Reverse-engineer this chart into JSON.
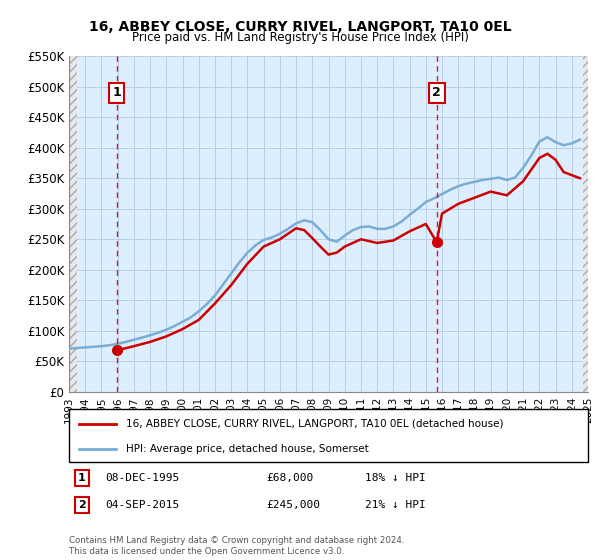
{
  "title": "16, ABBEY CLOSE, CURRY RIVEL, LANGPORT, TA10 0EL",
  "subtitle": "Price paid vs. HM Land Registry's House Price Index (HPI)",
  "ylim": [
    0,
    550000
  ],
  "xlim_start": 1993,
  "xlim_end": 2025,
  "yticks": [
    0,
    50000,
    100000,
    150000,
    200000,
    250000,
    300000,
    350000,
    400000,
    450000,
    500000,
    550000
  ],
  "ytick_labels": [
    "£0",
    "£50K",
    "£100K",
    "£150K",
    "£200K",
    "£250K",
    "£300K",
    "£350K",
    "£400K",
    "£450K",
    "£500K",
    "£550K"
  ],
  "xticks": [
    1993,
    1994,
    1995,
    1996,
    1997,
    1998,
    1999,
    2000,
    2001,
    2002,
    2003,
    2004,
    2005,
    2006,
    2007,
    2008,
    2009,
    2010,
    2011,
    2012,
    2013,
    2014,
    2015,
    2016,
    2017,
    2018,
    2019,
    2020,
    2021,
    2022,
    2023,
    2024,
    2025
  ],
  "hpi_color": "#7aadd4",
  "price_color": "#cc0000",
  "background_color": "#ddeeff",
  "grid_color": "#b8cfe8",
  "hatch_left_end": 1993.5,
  "hatch_right_start": 2024.67,
  "marker1_date": 1995.93,
  "marker1_price": 68000,
  "marker2_date": 2015.67,
  "marker2_price": 245000,
  "sale1_label": "1",
  "sale2_label": "2",
  "legend_label_price": "16, ABBEY CLOSE, CURRY RIVEL, LANGPORT, TA10 0EL (detached house)",
  "legend_label_hpi": "HPI: Average price, detached house, Somerset",
  "footnote": "Contains HM Land Registry data © Crown copyright and database right 2024.\nThis data is licensed under the Open Government Licence v3.0.",
  "hpi_data": {
    "years": [
      1993.0,
      1993.5,
      1994.0,
      1994.5,
      1995.0,
      1995.5,
      1996.0,
      1996.5,
      1997.0,
      1997.5,
      1998.0,
      1998.5,
      1999.0,
      1999.5,
      2000.0,
      2000.5,
      2001.0,
      2001.5,
      2002.0,
      2002.5,
      2003.0,
      2003.5,
      2004.0,
      2004.5,
      2005.0,
      2005.5,
      2006.0,
      2006.5,
      2007.0,
      2007.5,
      2008.0,
      2008.5,
      2009.0,
      2009.5,
      2010.0,
      2010.5,
      2011.0,
      2011.5,
      2012.0,
      2012.5,
      2013.0,
      2013.5,
      2014.0,
      2014.5,
      2015.0,
      2015.5,
      2016.0,
      2016.5,
      2017.0,
      2017.5,
      2018.0,
      2018.5,
      2019.0,
      2019.5,
      2020.0,
      2020.5,
      2021.0,
      2021.5,
      2022.0,
      2022.5,
      2023.0,
      2023.5,
      2024.0,
      2024.5
    ],
    "values": [
      71000,
      72000,
      73000,
      74000,
      75000,
      76500,
      79000,
      82000,
      85500,
      89000,
      93000,
      97000,
      102000,
      108000,
      115000,
      122000,
      132000,
      144000,
      158000,
      176000,
      194000,
      212000,
      228000,
      240000,
      249000,
      253000,
      259000,
      267000,
      276000,
      281000,
      278000,
      265000,
      250000,
      246000,
      256000,
      265000,
      270000,
      271000,
      267000,
      267000,
      271000,
      279000,
      290000,
      300000,
      311000,
      317000,
      324000,
      331000,
      337000,
      341000,
      344000,
      347000,
      349000,
      351000,
      347000,
      351000,
      367000,
      387000,
      410000,
      417000,
      409000,
      404000,
      407000,
      413000
    ]
  },
  "price_data": {
    "years": [
      1995.93,
      1997.0,
      1998.0,
      1999.0,
      2000.0,
      2001.0,
      2002.0,
      2003.0,
      2004.0,
      2005.0,
      2006.0,
      2007.0,
      2007.5,
      2008.0,
      2008.5,
      2009.0,
      2009.5,
      2010.0,
      2011.0,
      2012.0,
      2013.0,
      2014.0,
      2015.0,
      2015.67,
      2016.0,
      2017.0,
      2018.0,
      2019.0,
      2020.0,
      2021.0,
      2022.0,
      2022.5,
      2023.0,
      2023.5,
      2024.0,
      2024.5
    ],
    "values": [
      68000,
      75000,
      82000,
      91000,
      103000,
      118000,
      145000,
      175000,
      210000,
      238000,
      250000,
      268000,
      265000,
      252000,
      238000,
      225000,
      228000,
      238000,
      250000,
      244000,
      248000,
      263000,
      275000,
      245000,
      292000,
      308000,
      318000,
      328000,
      322000,
      345000,
      383000,
      390000,
      380000,
      360000,
      355000,
      350000
    ]
  }
}
